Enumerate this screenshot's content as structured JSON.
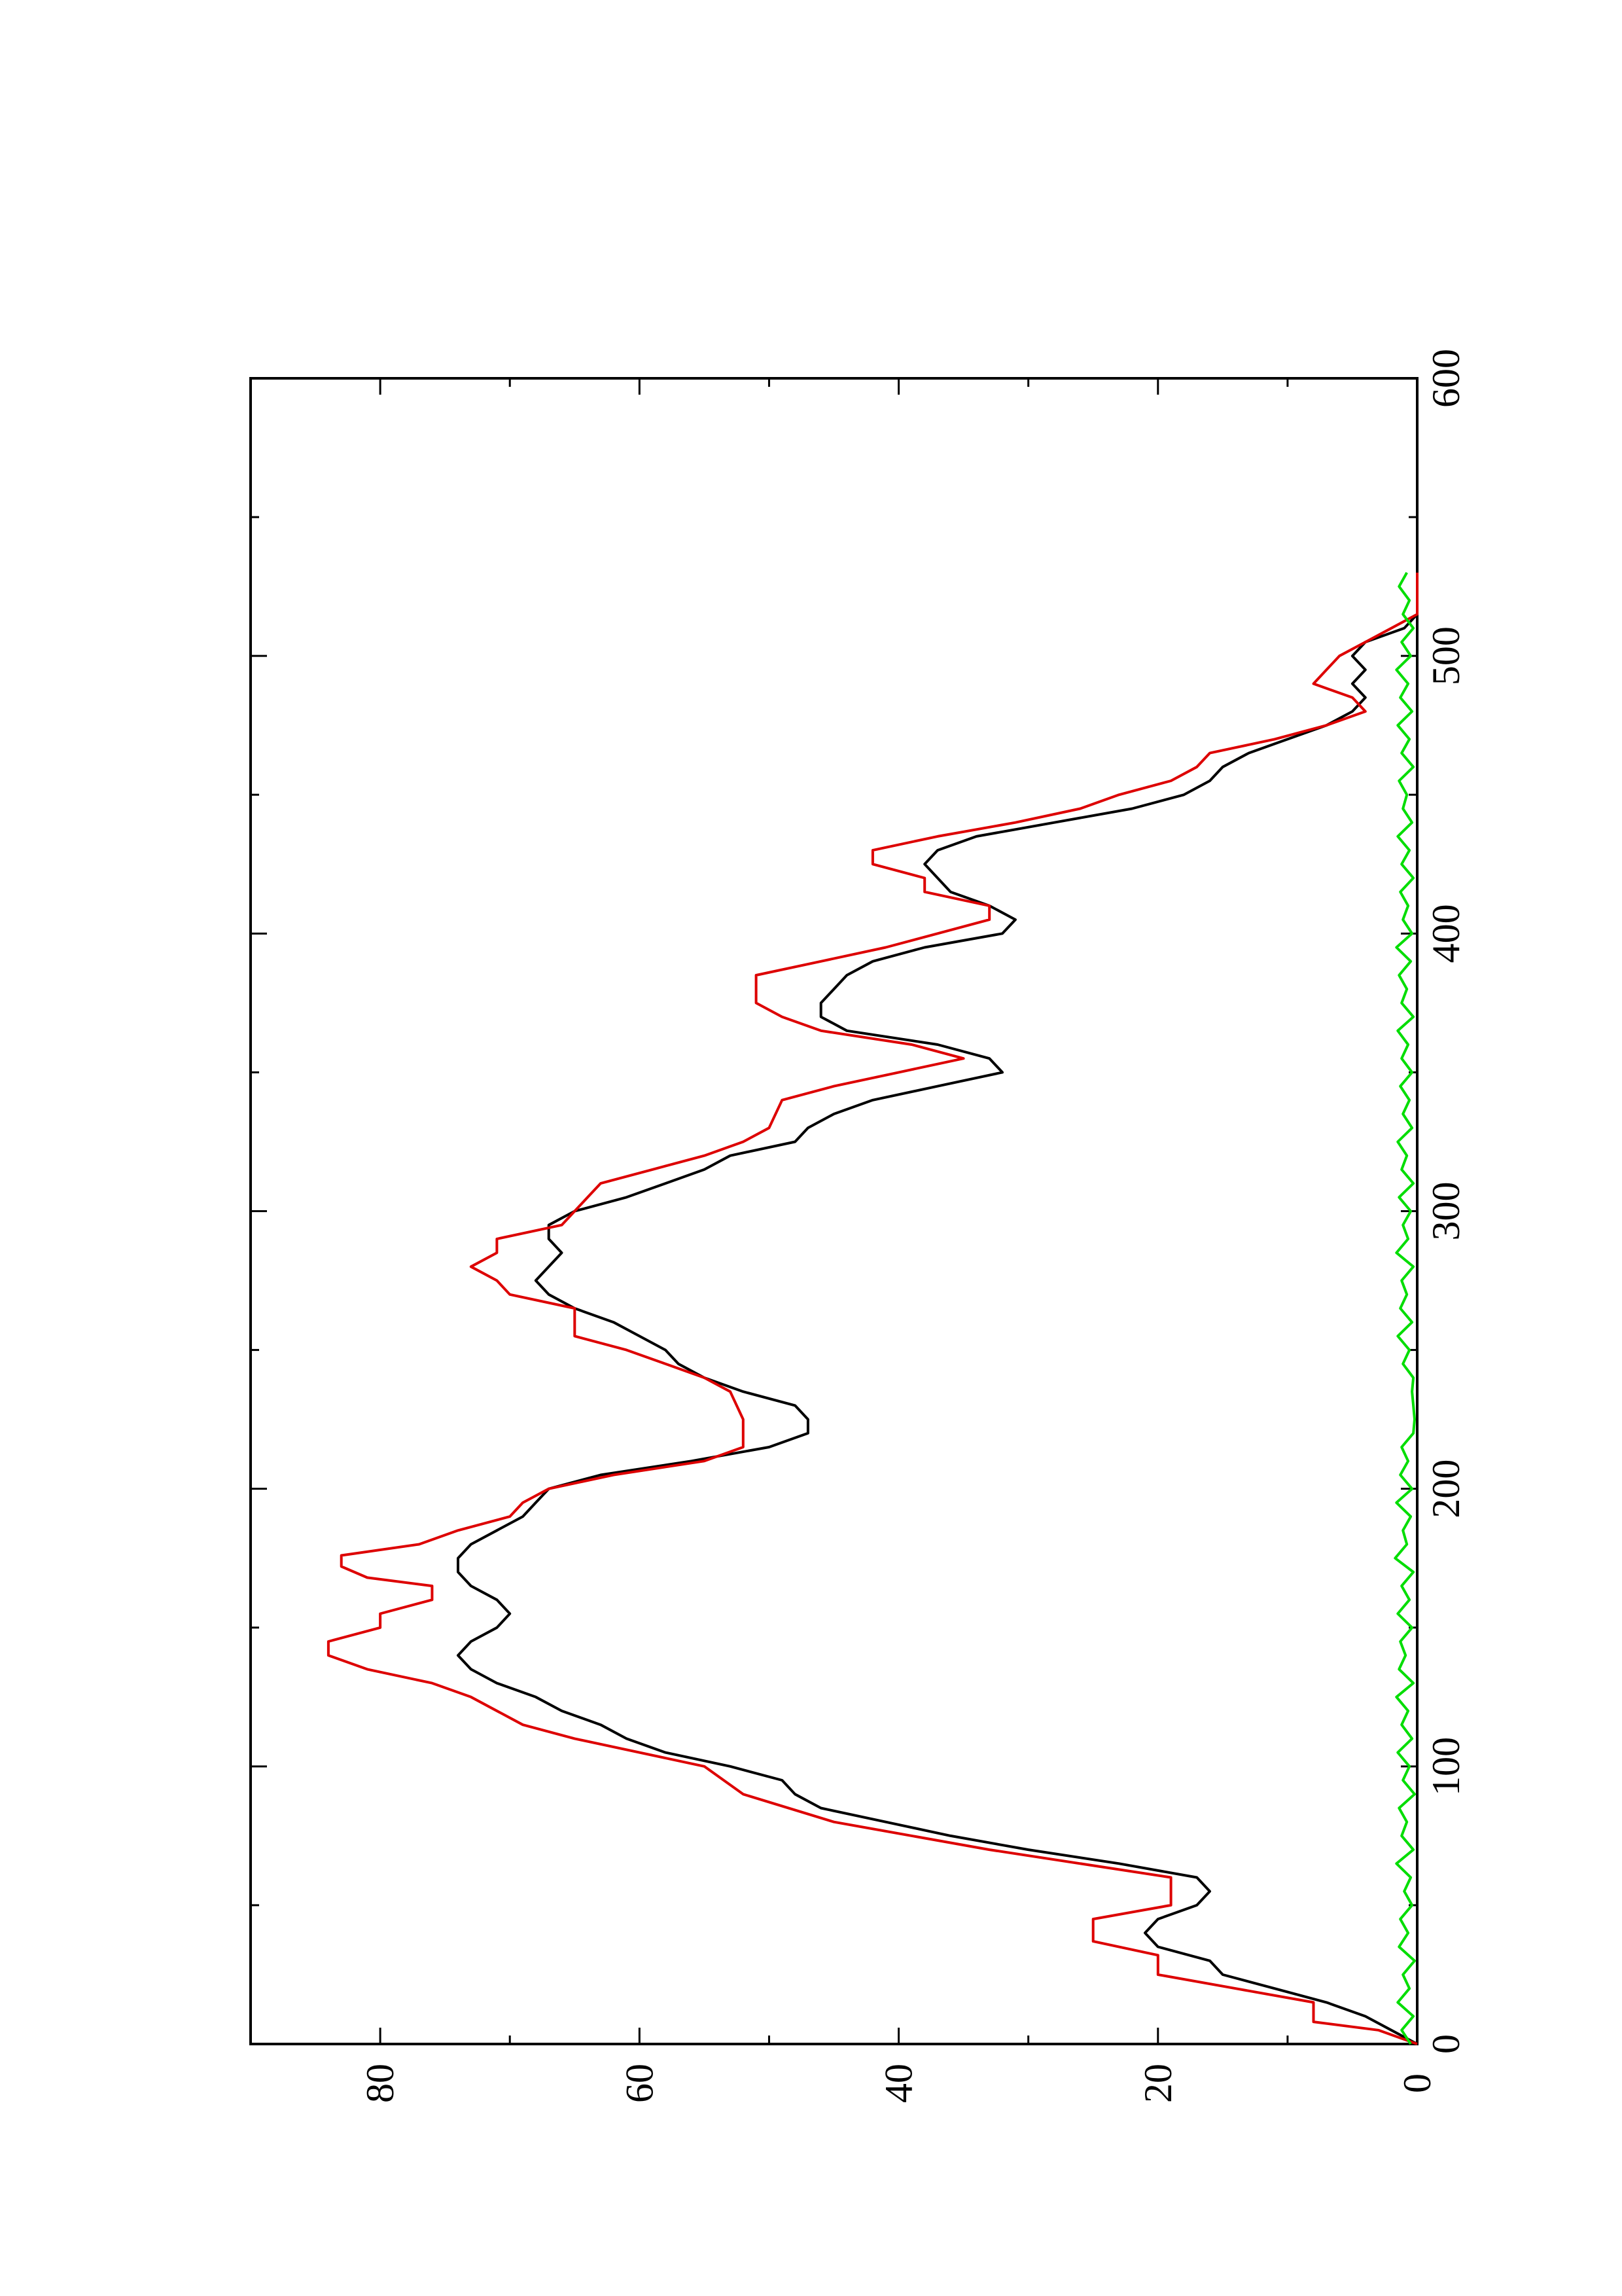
{
  "chart_data": {
    "type": "line",
    "orientation": "rotated-90-ccw",
    "title": "",
    "xlabel": "",
    "ylabel": "",
    "xlim": [
      0,
      600
    ],
    "ylim": [
      0,
      90
    ],
    "grid": false,
    "x_major_ticks": [
      0,
      100,
      200,
      300,
      400,
      500,
      600
    ],
    "x_minor_ticks": [
      50,
      150,
      250,
      350,
      450,
      550
    ],
    "y_major_ticks": [
      0,
      20,
      40,
      60,
      80
    ],
    "y_minor_ticks": [
      10,
      30,
      50,
      70
    ],
    "x_tick_labels": [
      "0",
      "100",
      "200",
      "300",
      "400",
      "500",
      "600"
    ],
    "y_tick_labels": [
      "0",
      "20",
      "40",
      "60",
      "80"
    ],
    "colors": {
      "series_1": "#000000",
      "series_2": "#dd0000",
      "series_3": "#00dd00"
    },
    "series": [
      {
        "color": "#000000",
        "points": [
          [
            0,
            0
          ],
          [
            5,
            2
          ],
          [
            10,
            4
          ],
          [
            15,
            7
          ],
          [
            20,
            11
          ],
          [
            25,
            15
          ],
          [
            30,
            16
          ],
          [
            35,
            20
          ],
          [
            40,
            21
          ],
          [
            45,
            20
          ],
          [
            50,
            17
          ],
          [
            55,
            16
          ],
          [
            60,
            17
          ],
          [
            65,
            23
          ],
          [
            70,
            30
          ],
          [
            75,
            36
          ],
          [
            80,
            41
          ],
          [
            85,
            46
          ],
          [
            90,
            48
          ],
          [
            95,
            49
          ],
          [
            100,
            53
          ],
          [
            105,
            58
          ],
          [
            110,
            61
          ],
          [
            115,
            63
          ],
          [
            120,
            66
          ],
          [
            125,
            68
          ],
          [
            130,
            71
          ],
          [
            135,
            73
          ],
          [
            140,
            74
          ],
          [
            145,
            73
          ],
          [
            150,
            71
          ],
          [
            155,
            70
          ],
          [
            160,
            71
          ],
          [
            165,
            73
          ],
          [
            170,
            74
          ],
          [
            175,
            74
          ],
          [
            180,
            73
          ],
          [
            185,
            71
          ],
          [
            190,
            69
          ],
          [
            195,
            68
          ],
          [
            200,
            67
          ],
          [
            205,
            63
          ],
          [
            210,
            56
          ],
          [
            215,
            50
          ],
          [
            220,
            47
          ],
          [
            225,
            47
          ],
          [
            230,
            48
          ],
          [
            235,
            52
          ],
          [
            240,
            55
          ],
          [
            245,
            57
          ],
          [
            250,
            58
          ],
          [
            255,
            60
          ],
          [
            260,
            62
          ],
          [
            265,
            65
          ],
          [
            270,
            67
          ],
          [
            275,
            68
          ],
          [
            280,
            67
          ],
          [
            285,
            66
          ],
          [
            290,
            67
          ],
          [
            295,
            67
          ],
          [
            300,
            65
          ],
          [
            305,
            61
          ],
          [
            310,
            58
          ],
          [
            315,
            55
          ],
          [
            320,
            53
          ],
          [
            325,
            48
          ],
          [
            330,
            47
          ],
          [
            335,
            45
          ],
          [
            340,
            42
          ],
          [
            345,
            37
          ],
          [
            350,
            32
          ],
          [
            355,
            33
          ],
          [
            360,
            37
          ],
          [
            365,
            44
          ],
          [
            370,
            46
          ],
          [
            375,
            46
          ],
          [
            380,
            45
          ],
          [
            385,
            44
          ],
          [
            390,
            42
          ],
          [
            395,
            38
          ],
          [
            400,
            32
          ],
          [
            405,
            31
          ],
          [
            410,
            33
          ],
          [
            415,
            36
          ],
          [
            420,
            37
          ],
          [
            425,
            38
          ],
          [
            430,
            37
          ],
          [
            435,
            34
          ],
          [
            440,
            28
          ],
          [
            445,
            22
          ],
          [
            450,
            18
          ],
          [
            455,
            16
          ],
          [
            460,
            15
          ],
          [
            465,
            13
          ],
          [
            470,
            10
          ],
          [
            475,
            7
          ],
          [
            480,
            5
          ],
          [
            485,
            4
          ],
          [
            490,
            5
          ],
          [
            495,
            4
          ],
          [
            500,
            5
          ],
          [
            505,
            4
          ],
          [
            510,
            1
          ],
          [
            515,
            0
          ],
          [
            520,
            0
          ],
          [
            525,
            0
          ],
          [
            530,
            0
          ]
        ]
      },
      {
        "color": "#dd0000",
        "points": [
          [
            0,
            0
          ],
          [
            5,
            3
          ],
          [
            8,
            8
          ],
          [
            15,
            8
          ],
          [
            20,
            14
          ],
          [
            25,
            20
          ],
          [
            32,
            20
          ],
          [
            37,
            25
          ],
          [
            45,
            25
          ],
          [
            50,
            19
          ],
          [
            60,
            19
          ],
          [
            70,
            33
          ],
          [
            80,
            45
          ],
          [
            90,
            52
          ],
          [
            100,
            55
          ],
          [
            110,
            65
          ],
          [
            115,
            69
          ],
          [
            125,
            73
          ],
          [
            130,
            76
          ],
          [
            135,
            81
          ],
          [
            140,
            84
          ],
          [
            145,
            84
          ],
          [
            150,
            80
          ],
          [
            155,
            80
          ],
          [
            160,
            76
          ],
          [
            165,
            76
          ],
          [
            168,
            81
          ],
          [
            172,
            83
          ],
          [
            176,
            83
          ],
          [
            180,
            77
          ],
          [
            185,
            74
          ],
          [
            190,
            70
          ],
          [
            195,
            69
          ],
          [
            200,
            67
          ],
          [
            205,
            62
          ],
          [
            210,
            55
          ],
          [
            215,
            52
          ],
          [
            225,
            52
          ],
          [
            235,
            53
          ],
          [
            240,
            55
          ],
          [
            245,
            58
          ],
          [
            250,
            61
          ],
          [
            255,
            65
          ],
          [
            265,
            65
          ],
          [
            270,
            70
          ],
          [
            275,
            71
          ],
          [
            280,
            73
          ],
          [
            285,
            71
          ],
          [
            290,
            71
          ],
          [
            295,
            66
          ],
          [
            305,
            64
          ],
          [
            310,
            63
          ],
          [
            315,
            59
          ],
          [
            320,
            55
          ],
          [
            325,
            52
          ],
          [
            330,
            50
          ],
          [
            340,
            49
          ],
          [
            345,
            45
          ],
          [
            350,
            40
          ],
          [
            355,
            35
          ],
          [
            360,
            39
          ],
          [
            365,
            46
          ],
          [
            370,
            49
          ],
          [
            375,
            51
          ],
          [
            385,
            51
          ],
          [
            390,
            46
          ],
          [
            395,
            41
          ],
          [
            400,
            37
          ],
          [
            405,
            33
          ],
          [
            410,
            33
          ],
          [
            415,
            38
          ],
          [
            420,
            38
          ],
          [
            425,
            42
          ],
          [
            430,
            42
          ],
          [
            435,
            37
          ],
          [
            440,
            31
          ],
          [
            445,
            26
          ],
          [
            450,
            23
          ],
          [
            455,
            19
          ],
          [
            460,
            17
          ],
          [
            465,
            16
          ],
          [
            470,
            11
          ],
          [
            475,
            7
          ],
          [
            480,
            4
          ],
          [
            485,
            5
          ],
          [
            490,
            8
          ],
          [
            495,
            7
          ],
          [
            500,
            6
          ],
          [
            505,
            4
          ],
          [
            510,
            2
          ],
          [
            515,
            0
          ],
          [
            520,
            0
          ],
          [
            530,
            0
          ]
        ]
      },
      {
        "color": "#00dd00",
        "points": [
          [
            0,
            0.5
          ],
          [
            5,
            1.2
          ],
          [
            10,
            0.3
          ],
          [
            15,
            1.5
          ],
          [
            20,
            0.6
          ],
          [
            25,
            1.1
          ],
          [
            30,
            0.2
          ],
          [
            35,
            1.4
          ],
          [
            40,
            0.7
          ],
          [
            45,
            1.3
          ],
          [
            50,
            0.4
          ],
          [
            55,
            1.0
          ],
          [
            60,
            0.5
          ],
          [
            65,
            1.6
          ],
          [
            70,
            0.3
          ],
          [
            75,
            1.2
          ],
          [
            80,
            0.8
          ],
          [
            85,
            1.4
          ],
          [
            90,
            0.2
          ],
          [
            95,
            1.1
          ],
          [
            100,
            0.6
          ],
          [
            105,
            1.5
          ],
          [
            110,
            0.4
          ],
          [
            115,
            1.2
          ],
          [
            120,
            0.7
          ],
          [
            125,
            1.6
          ],
          [
            130,
            0.3
          ],
          [
            135,
            1.4
          ],
          [
            140,
            0.9
          ],
          [
            145,
            1.3
          ],
          [
            150,
            0.4
          ],
          [
            155,
            1.5
          ],
          [
            160,
            0.6
          ],
          [
            165,
            1.2
          ],
          [
            170,
            0.3
          ],
          [
            175,
            1.7
          ],
          [
            180,
            0.8
          ],
          [
            185,
            1.1
          ],
          [
            190,
            0.5
          ],
          [
            195,
            1.6
          ],
          [
            200,
            0.4
          ],
          [
            205,
            1.3
          ],
          [
            210,
            0.7
          ],
          [
            215,
            1.2
          ],
          [
            220,
            0.3
          ],
          [
            225,
            0.2
          ],
          [
            230,
            0.3
          ],
          [
            235,
            0.4
          ],
          [
            240,
            0.3
          ],
          [
            245,
            1.1
          ],
          [
            250,
            0.6
          ],
          [
            255,
            1.5
          ],
          [
            260,
            0.4
          ],
          [
            265,
            1.3
          ],
          [
            270,
            0.8
          ],
          [
            275,
            1.2
          ],
          [
            280,
            0.3
          ],
          [
            285,
            1.6
          ],
          [
            290,
            0.7
          ],
          [
            295,
            1.1
          ],
          [
            300,
            0.5
          ],
          [
            305,
            1.4
          ],
          [
            310,
            0.3
          ],
          [
            315,
            1.2
          ],
          [
            320,
            0.8
          ],
          [
            325,
            1.5
          ],
          [
            330,
            0.4
          ],
          [
            335,
            1.1
          ],
          [
            340,
            0.6
          ],
          [
            345,
            1.3
          ],
          [
            350,
            0.4
          ],
          [
            355,
            1.2
          ],
          [
            360,
            0.7
          ],
          [
            365,
            1.5
          ],
          [
            370,
            0.3
          ],
          [
            375,
            1.2
          ],
          [
            380,
            0.8
          ],
          [
            385,
            1.4
          ],
          [
            390,
            0.5
          ],
          [
            395,
            1.6
          ],
          [
            400,
            0.4
          ],
          [
            405,
            1.1
          ],
          [
            410,
            0.7
          ],
          [
            415,
            1.3
          ],
          [
            420,
            0.3
          ],
          [
            425,
            1.2
          ],
          [
            430,
            0.6
          ],
          [
            435,
            1.5
          ],
          [
            440,
            0.4
          ],
          [
            445,
            1.1
          ],
          [
            450,
            0.8
          ],
          [
            455,
            1.4
          ],
          [
            460,
            0.3
          ],
          [
            465,
            1.2
          ],
          [
            470,
            0.6
          ],
          [
            475,
            1.5
          ],
          [
            480,
            0.4
          ],
          [
            485,
            1.3
          ],
          [
            490,
            0.7
          ],
          [
            495,
            1.6
          ],
          [
            500,
            0.5
          ],
          [
            505,
            1.2
          ],
          [
            510,
            0.3
          ],
          [
            515,
            1.1
          ],
          [
            520,
            0.6
          ],
          [
            525,
            1.4
          ],
          [
            530,
            0.8
          ]
        ]
      }
    ]
  }
}
